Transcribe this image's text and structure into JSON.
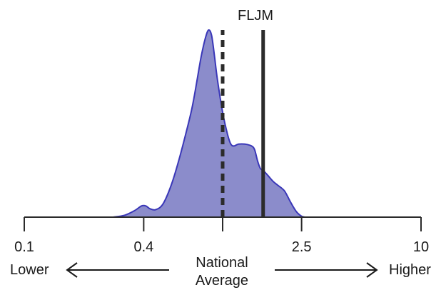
{
  "chart_data": {
    "type": "area",
    "title": "",
    "xlabel": "",
    "ylabel": "",
    "x_scale": "log",
    "xlim": [
      0.1,
      10
    ],
    "ylim": [
      0,
      1
    ],
    "grid": false,
    "x_ticks": [
      {
        "value": 0.1,
        "label": "0.1"
      },
      {
        "value": 0.4,
        "label": "0.4"
      },
      {
        "value": 1.0,
        "label": ""
      },
      {
        "value": 2.5,
        "label": "2.5"
      },
      {
        "value": 10,
        "label": "10"
      }
    ],
    "density": {
      "color": "#8b8ccb",
      "edge_color": "#3a37b8",
      "x": [
        0.28,
        0.32,
        0.36,
        0.39,
        0.41,
        0.43,
        0.46,
        0.5,
        0.55,
        0.6,
        0.65,
        0.7,
        0.74,
        0.78,
        0.82,
        0.85,
        0.88,
        0.91,
        0.94,
        1.0,
        1.06,
        1.1,
        1.14,
        1.2,
        1.3,
        1.4,
        1.45,
        1.5,
        1.55,
        1.6,
        1.7,
        1.8,
        1.9,
        2.05,
        2.2,
        2.35,
        2.5,
        2.6
      ],
      "y": [
        0.0,
        0.01,
        0.035,
        0.06,
        0.06,
        0.045,
        0.04,
        0.07,
        0.17,
        0.3,
        0.44,
        0.58,
        0.72,
        0.86,
        0.96,
        1.0,
        0.97,
        0.86,
        0.74,
        0.56,
        0.44,
        0.39,
        0.38,
        0.39,
        0.39,
        0.38,
        0.36,
        0.3,
        0.26,
        0.25,
        0.22,
        0.19,
        0.17,
        0.14,
        0.08,
        0.03,
        0.005,
        0.0
      ]
    },
    "reference_lines": [
      {
        "name": "FLJM",
        "value": 1.6,
        "style": "solid"
      },
      {
        "name": "",
        "value": 1.0,
        "style": "dashed"
      }
    ],
    "annotations": {
      "lower": "Lower",
      "higher": "Higher",
      "center_line1": "National",
      "center_line2": "Average"
    }
  }
}
